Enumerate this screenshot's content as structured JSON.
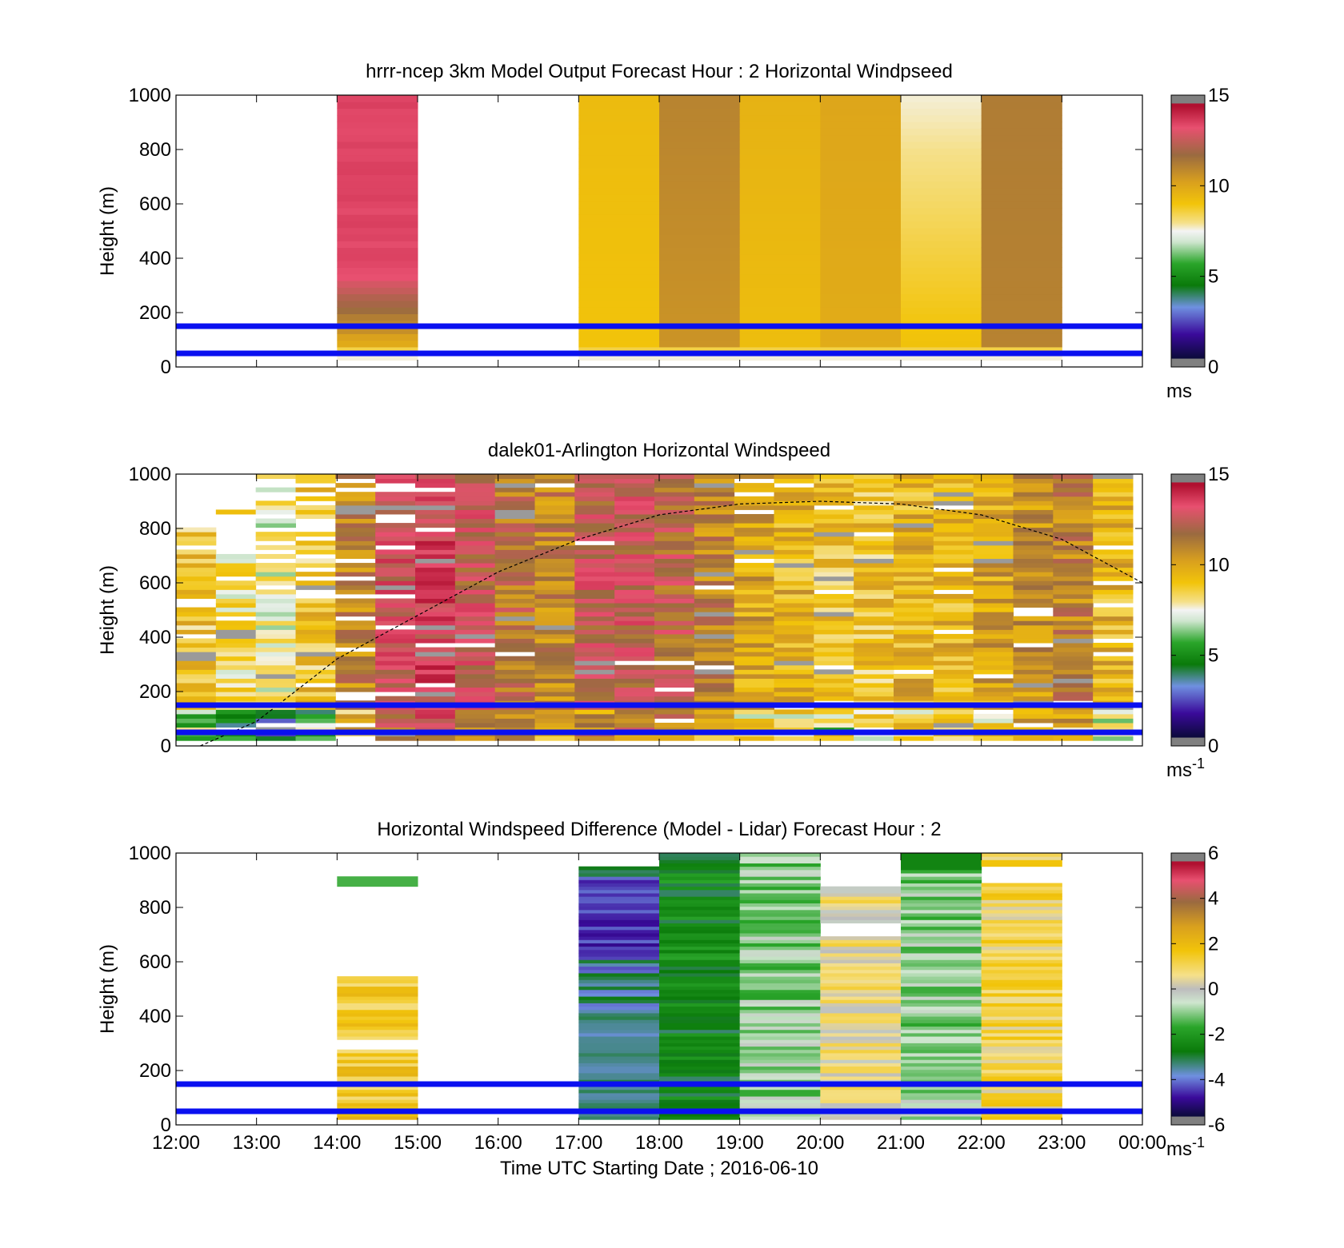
{
  "figure": {
    "xlabel": "Time UTC  Starting Date ; 2016-06-10",
    "x_ticks": [
      "12:00",
      "13:00",
      "14:00",
      "15:00",
      "16:00",
      "17:00",
      "18:00",
      "19:00",
      "20:00",
      "21:00",
      "22:00",
      "23:00",
      "00:00"
    ]
  },
  "chart_data": [
    {
      "type": "heatmap",
      "title": "hrrr-ncep 3km Model Output   Forecast Hour : 2 Horizontal Windpseed",
      "ylabel": "Height (m)",
      "xlabel": "",
      "xlim": [
        "12:00",
        "00:00"
      ],
      "ylim": [
        0,
        1000
      ],
      "y_ticks": [
        "0",
        "200",
        "400",
        "600",
        "800",
        "1000"
      ],
      "colorbar": {
        "ticks": [
          "0",
          "5",
          "10",
          "15"
        ],
        "range": [
          0,
          15
        ],
        "unit": "ms",
        "unit_sup": ""
      },
      "reference_lines_m": [
        50,
        150
      ],
      "columns": [
        {
          "start": "14:00",
          "end": "15:00",
          "value_low": 9,
          "value_high": 13.5
        },
        {
          "start": "17:00",
          "end": "18:00",
          "value_low": 9,
          "value_high": 9.3
        },
        {
          "start": "18:00",
          "end": "19:00",
          "value_low": 10.5,
          "value_high": 11
        },
        {
          "start": "19:00",
          "end": "20:00",
          "value_low": 9.2,
          "value_high": 9.6
        },
        {
          "start": "20:00",
          "end": "21:00",
          "value_low": 9.8,
          "value_high": 10
        },
        {
          "start": "21:00",
          "end": "22:00",
          "value_low": 8.2,
          "value_high": 8.8
        },
        {
          "start": "22:00",
          "end": "23:00",
          "value_low": 11,
          "value_high": 11.2
        }
      ]
    },
    {
      "type": "heatmap",
      "title": "dalek01-Arlington  Horizontal Windspeed",
      "ylabel": "Height (m)",
      "xlabel": "",
      "xlim": [
        "12:00",
        "00:00"
      ],
      "ylim": [
        0,
        1000
      ],
      "y_ticks": [
        "0",
        "200",
        "400",
        "600",
        "800",
        "1000"
      ],
      "colorbar": {
        "ticks": [
          "0",
          "5",
          "10",
          "15"
        ],
        "range": [
          0,
          15
        ],
        "unit": "ms",
        "unit_sup": "-1"
      },
      "reference_lines_m": [
        50,
        150
      ],
      "boundary_layer_curve_m": [
        [
          12.3,
          0
        ],
        [
          13,
          90
        ],
        [
          14,
          320
        ],
        [
          15,
          480
        ],
        [
          16,
          640
        ],
        [
          17,
          760
        ],
        [
          18,
          850
        ],
        [
          19,
          890
        ],
        [
          20,
          900
        ],
        [
          21,
          890
        ],
        [
          22,
          850
        ],
        [
          23,
          760
        ],
        [
          24,
          600
        ]
      ],
      "column_mean_ms": [
        9,
        8,
        7.5,
        9,
        11,
        13,
        13.5,
        12.5,
        11.5,
        11,
        12.5,
        12.5,
        12,
        11,
        10,
        9.5,
        9,
        9,
        9.5,
        9.5,
        10,
        10.5,
        11,
        9.5
      ]
    },
    {
      "type": "heatmap",
      "title": "Horizontal Windspeed Difference (Model - Lidar) Forecast Hour : 2",
      "ylabel": "Height (m)",
      "xlabel": "Time UTC  Starting Date ; 2016-06-10",
      "xlim": [
        "12:00",
        "00:00"
      ],
      "ylim": [
        0,
        1000
      ],
      "y_ticks": [
        "0",
        "200",
        "400",
        "600",
        "800",
        "1000"
      ],
      "colorbar": {
        "ticks": [
          "-6",
          "-4",
          "-2",
          "0",
          "2",
          "4",
          "6"
        ],
        "range": [
          -6,
          6
        ],
        "unit": "ms",
        "unit_sup": "-1"
      },
      "reference_lines_m": [
        50,
        150
      ],
      "columns": [
        {
          "start": "14:00",
          "end": "15:00",
          "mean_diff": 1.5
        },
        {
          "start": "17:00",
          "end": "18:00",
          "mean_diff": -3.5
        },
        {
          "start": "18:00",
          "end": "19:00",
          "mean_diff": -2.5
        },
        {
          "start": "19:00",
          "end": "20:00",
          "mean_diff": -1
        },
        {
          "start": "20:00",
          "end": "21:00",
          "mean_diff": 0.5
        },
        {
          "start": "21:00",
          "end": "22:00",
          "mean_diff": -1
        },
        {
          "start": "22:00",
          "end": "23:00",
          "mean_diff": 1
        }
      ]
    }
  ]
}
